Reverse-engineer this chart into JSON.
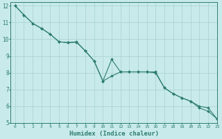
{
  "xlabel": "Humidex (Indice chaleur)",
  "ylabel": "",
  "background_color": "#c8eaea",
  "grid_color": "#a8d0d0",
  "line_color": "#2e7d6e",
  "xlim": [
    -0.5,
    23
  ],
  "ylim": [
    5,
    12.2
  ],
  "xticks": [
    0,
    1,
    2,
    3,
    4,
    5,
    6,
    7,
    8,
    9,
    10,
    11,
    12,
    13,
    14,
    15,
    16,
    17,
    18,
    19,
    20,
    21,
    22,
    23
  ],
  "yticks": [
    5,
    6,
    7,
    8,
    9,
    10,
    11,
    12
  ],
  "series1_x": [
    0,
    1,
    2,
    3,
    4,
    5,
    6,
    7,
    8,
    9,
    10,
    11,
    12,
    13,
    14,
    15,
    16,
    17,
    18,
    19,
    20,
    21,
    22,
    23
  ],
  "series1_y": [
    12.0,
    11.45,
    10.95,
    10.65,
    10.3,
    9.85,
    9.8,
    9.85,
    9.3,
    8.7,
    7.5,
    7.8,
    8.05,
    8.05,
    8.05,
    8.05,
    8.05,
    7.1,
    6.75,
    6.5,
    6.3,
    6.0,
    5.9,
    5.25
  ],
  "series2_x": [
    0,
    1,
    2,
    3,
    4,
    5,
    6,
    7,
    8,
    9,
    10,
    11,
    12,
    13,
    14,
    15,
    16,
    17,
    18,
    19,
    20,
    21,
    22,
    23
  ],
  "series2_y": [
    12.0,
    11.45,
    10.95,
    10.65,
    10.3,
    9.85,
    9.8,
    9.82,
    9.3,
    8.7,
    7.5,
    8.8,
    8.05,
    8.05,
    8.05,
    8.05,
    8.0,
    7.1,
    6.75,
    6.5,
    6.3,
    5.9,
    5.7,
    5.25
  ]
}
